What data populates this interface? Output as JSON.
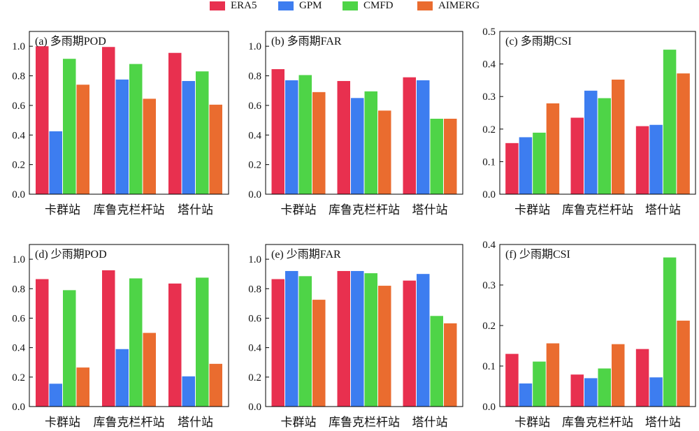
{
  "legend": [
    {
      "name": "ERA5",
      "color": "#e8304f"
    },
    {
      "name": "GPM",
      "color": "#3d7df0"
    },
    {
      "name": "CMFD",
      "color": "#4ed447"
    },
    {
      "name": "AIMERG",
      "color": "#ea6c2f"
    }
  ],
  "chart_data": [
    {
      "type": "bar",
      "title": "(a) 多雨期POD",
      "categories": [
        "卡群站",
        "库鲁克栏杆站",
        "塔什站"
      ],
      "ylim": [
        0,
        1.1
      ],
      "yticks": [
        0.0,
        0.2,
        0.4,
        0.6,
        0.8,
        1.0
      ],
      "ytick_labels": [
        "0.0",
        "0.2",
        "0.4",
        "0.6",
        "0.8",
        "1.0"
      ],
      "series": [
        {
          "name": "ERA5",
          "values": [
            1.0,
            0.995,
            0.955
          ]
        },
        {
          "name": "GPM",
          "values": [
            0.425,
            0.775,
            0.765
          ]
        },
        {
          "name": "CMFD",
          "values": [
            0.915,
            0.88,
            0.83
          ]
        },
        {
          "name": "AIMERG",
          "values": [
            0.74,
            0.645,
            0.605
          ]
        }
      ]
    },
    {
      "type": "bar",
      "title": "(b) 多雨期FAR",
      "categories": [
        "卡群站",
        "库鲁克栏杆站",
        "塔什站"
      ],
      "ylim": [
        0,
        1.1
      ],
      "yticks": [
        0.0,
        0.2,
        0.4,
        0.6,
        0.8,
        1.0
      ],
      "ytick_labels": [
        "0.0",
        "0.2",
        "0.4",
        "0.6",
        "0.8",
        "1.0"
      ],
      "series": [
        {
          "name": "ERA5",
          "values": [
            0.845,
            0.765,
            0.79
          ]
        },
        {
          "name": "GPM",
          "values": [
            0.77,
            0.65,
            0.77
          ]
        },
        {
          "name": "CMFD",
          "values": [
            0.805,
            0.695,
            0.51
          ]
        },
        {
          "name": "AIMERG",
          "values": [
            0.69,
            0.565,
            0.51
          ]
        }
      ]
    },
    {
      "type": "bar",
      "title": "(c) 多雨期CSI",
      "categories": [
        "卡群站",
        "库鲁克栏杆站",
        "塔什站"
      ],
      "ylim": [
        0,
        0.5
      ],
      "yticks": [
        0.0,
        0.1,
        0.2,
        0.3,
        0.4,
        0.5
      ],
      "ytick_labels": [
        "0.0",
        "0.1",
        "0.2",
        "0.3",
        "0.4",
        "0.5"
      ],
      "series": [
        {
          "name": "ERA5",
          "values": [
            0.157,
            0.235,
            0.209
          ]
        },
        {
          "name": "GPM",
          "values": [
            0.175,
            0.318,
            0.213
          ]
        },
        {
          "name": "CMFD",
          "values": [
            0.189,
            0.295,
            0.444
          ]
        },
        {
          "name": "AIMERG",
          "values": [
            0.279,
            0.352,
            0.371
          ]
        }
      ]
    },
    {
      "type": "bar",
      "title": "(d) 少雨期POD",
      "categories": [
        "卡群站",
        "库鲁克栏杆站",
        "塔什站"
      ],
      "ylim": [
        0,
        1.1
      ],
      "yticks": [
        0.0,
        0.2,
        0.4,
        0.6,
        0.8,
        1.0
      ],
      "ytick_labels": [
        "0.0",
        "0.2",
        "0.4",
        "0.6",
        "0.8",
        "1.0"
      ],
      "series": [
        {
          "name": "ERA5",
          "values": [
            0.865,
            0.925,
            0.835
          ]
        },
        {
          "name": "GPM",
          "values": [
            0.155,
            0.39,
            0.205
          ]
        },
        {
          "name": "CMFD",
          "values": [
            0.79,
            0.87,
            0.875
          ]
        },
        {
          "name": "AIMERG",
          "values": [
            0.265,
            0.5,
            0.29
          ]
        }
      ]
    },
    {
      "type": "bar",
      "title": "(e) 少雨期FAR",
      "categories": [
        "卡群站",
        "库鲁克栏杆站",
        "塔什站"
      ],
      "ylim": [
        0,
        1.1
      ],
      "yticks": [
        0.0,
        0.2,
        0.4,
        0.6,
        0.8,
        1.0
      ],
      "ytick_labels": [
        "0.0",
        "0.2",
        "0.4",
        "0.6",
        "0.8",
        "1.0"
      ],
      "series": [
        {
          "name": "ERA5",
          "values": [
            0.865,
            0.92,
            0.855
          ]
        },
        {
          "name": "GPM",
          "values": [
            0.92,
            0.92,
            0.9
          ]
        },
        {
          "name": "CMFD",
          "values": [
            0.885,
            0.905,
            0.615
          ]
        },
        {
          "name": "AIMERG",
          "values": [
            0.725,
            0.82,
            0.565
          ]
        }
      ]
    },
    {
      "type": "bar",
      "title": "(f) 少雨期CSI",
      "categories": [
        "卡群站",
        "库鲁克栏杆站",
        "塔什站"
      ],
      "ylim": [
        0,
        0.4
      ],
      "yticks": [
        0.0,
        0.1,
        0.2,
        0.3,
        0.4
      ],
      "ytick_labels": [
        "0.0",
        "0.1",
        "0.2",
        "0.3",
        "0.4"
      ],
      "series": [
        {
          "name": "ERA5",
          "values": [
            0.13,
            0.079,
            0.142
          ]
        },
        {
          "name": "GPM",
          "values": [
            0.057,
            0.07,
            0.072
          ]
        },
        {
          "name": "CMFD",
          "values": [
            0.111,
            0.094,
            0.368
          ]
        },
        {
          "name": "AIMERG",
          "values": [
            0.156,
            0.154,
            0.212
          ]
        }
      ]
    }
  ]
}
